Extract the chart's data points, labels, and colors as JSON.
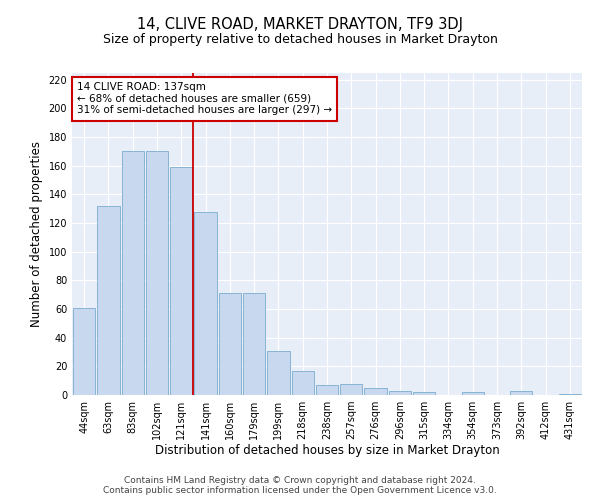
{
  "title": "14, CLIVE ROAD, MARKET DRAYTON, TF9 3DJ",
  "subtitle": "Size of property relative to detached houses in Market Drayton",
  "xlabel": "Distribution of detached houses by size in Market Drayton",
  "ylabel": "Number of detached properties",
  "categories": [
    "44sqm",
    "63sqm",
    "83sqm",
    "102sqm",
    "121sqm",
    "141sqm",
    "160sqm",
    "179sqm",
    "199sqm",
    "218sqm",
    "238sqm",
    "257sqm",
    "276sqm",
    "296sqm",
    "315sqm",
    "334sqm",
    "354sqm",
    "373sqm",
    "392sqm",
    "412sqm",
    "431sqm"
  ],
  "values": [
    61,
    132,
    170,
    170,
    159,
    128,
    71,
    71,
    31,
    17,
    7,
    8,
    5,
    3,
    2,
    0,
    2,
    0,
    3,
    0,
    1
  ],
  "bar_color": "#c8d9ef",
  "bar_edge_color": "#7aabcf",
  "property_label": "14 CLIVE ROAD: 137sqm",
  "annotation_line1": "← 68% of detached houses are smaller (659)",
  "annotation_line2": "31% of semi-detached houses are larger (297) →",
  "vline_color": "#cc0000",
  "vline_x_index": 5,
  "annotation_box_color": "#cc0000",
  "ylim": [
    0,
    225
  ],
  "yticks": [
    0,
    20,
    40,
    60,
    80,
    100,
    120,
    140,
    160,
    180,
    200,
    220
  ],
  "footer_line1": "Contains HM Land Registry data © Crown copyright and database right 2024.",
  "footer_line2": "Contains public sector information licensed under the Open Government Licence v3.0.",
  "background_color": "#e8eef8",
  "title_fontsize": 10.5,
  "subtitle_fontsize": 9,
  "xlabel_fontsize": 8.5,
  "ylabel_fontsize": 8.5,
  "tick_fontsize": 7,
  "footer_fontsize": 6.5,
  "annotation_fontsize": 7.5
}
